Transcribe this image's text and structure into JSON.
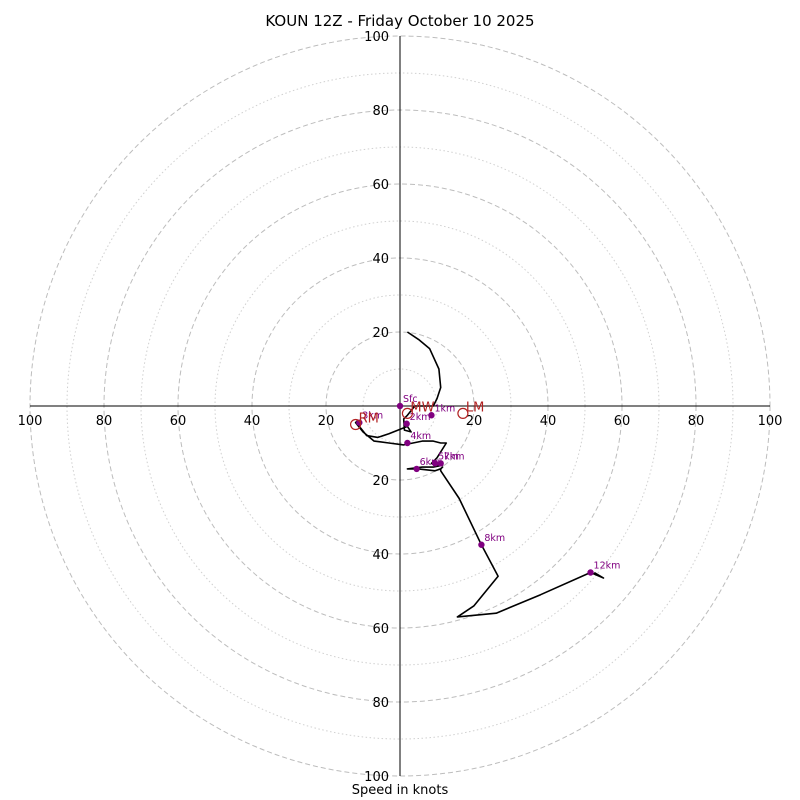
{
  "chart_data": {
    "type": "hodograph",
    "title": "KOUN 12Z - Friday October 10 2025",
    "xlabel": "Speed in knots",
    "axis_range": [
      -100,
      100
    ],
    "grid": {
      "major_rings": [
        20,
        40,
        60,
        80,
        100
      ],
      "minor_rings": [
        10,
        30,
        50,
        70,
        90
      ],
      "major_style": "dashed",
      "minor_style": "dotted"
    },
    "x_tick_labels": [
      "100",
      "80",
      "60",
      "40",
      "20",
      "20",
      "40",
      "60",
      "80",
      "100"
    ],
    "y_tick_labels": [
      "100",
      "80",
      "60",
      "40",
      "20",
      "20",
      "40",
      "60",
      "80",
      "100"
    ],
    "trace": [
      [
        2,
        20
      ],
      [
        5,
        18
      ],
      [
        8,
        15.5
      ],
      [
        10.5,
        10
      ],
      [
        11,
        5
      ],
      [
        10,
        2
      ],
      [
        9,
        0
      ],
      [
        4,
        0
      ],
      [
        2,
        -2.5
      ],
      [
        1,
        -3.5
      ],
      [
        1.2,
        -6.5
      ],
      [
        3,
        -7
      ],
      [
        2,
        -5.5
      ],
      [
        -3,
        -7.5
      ],
      [
        -6,
        -8.5
      ],
      [
        -9,
        -8
      ],
      [
        -11,
        -5.5
      ],
      [
        -11.5,
        -4
      ],
      [
        -12,
        -4.5
      ],
      [
        -10,
        -7
      ],
      [
        -7,
        -9.5
      ],
      [
        -3,
        -10
      ],
      [
        1,
        -10.5
      ],
      [
        6,
        -9.5
      ],
      [
        9,
        -9.5
      ],
      [
        11,
        -10
      ],
      [
        12.5,
        -10
      ],
      [
        10,
        -14
      ],
      [
        8.5,
        -15.5
      ],
      [
        11.5,
        -16
      ],
      [
        9,
        -16.5
      ],
      [
        6,
        -16.5
      ],
      [
        2,
        -17
      ],
      [
        5,
        -17
      ],
      [
        9.5,
        -17.5
      ],
      [
        11,
        -17
      ],
      [
        11.5,
        -16.5
      ],
      [
        11,
        -17
      ],
      [
        11,
        -17.5
      ],
      [
        16,
        -25
      ],
      [
        22,
        -37.5
      ],
      [
        26.5,
        -46
      ],
      [
        20,
        -54
      ],
      [
        15.5,
        -57
      ],
      [
        26,
        -56
      ],
      [
        38,
        -51
      ],
      [
        51.5,
        -45
      ],
      [
        55,
        -46.5
      ],
      [
        52.5,
        -45
      ]
    ],
    "height_markers": [
      {
        "label": "Sfc",
        "u": 0,
        "v": 0
      },
      {
        "label": "1km",
        "u": 8.5,
        "v": -2.5
      },
      {
        "label": "2km",
        "u": 1.8,
        "v": -4.8
      },
      {
        "label": "3km",
        "u": -11,
        "v": -4.5
      },
      {
        "label": "4km",
        "u": 2,
        "v": -10
      },
      {
        "label": "5km",
        "u": 9.5,
        "v": -15.5
      },
      {
        "label": "6km",
        "u": 4.5,
        "v": -17
      },
      {
        "label": "7km",
        "u": 11,
        "v": -15.5
      },
      {
        "label": "8km",
        "u": 22,
        "v": -37.5
      },
      {
        "label": "12km",
        "u": 51.5,
        "v": -45
      }
    ],
    "storm_motion": [
      {
        "label": "RM",
        "u": -12,
        "v": -5
      },
      {
        "label": "LM",
        "u": 17,
        "v": -2
      },
      {
        "label": "MW",
        "u": 2,
        "v": -2
      }
    ],
    "colors": {
      "trace": "#000000",
      "markers": "#800080",
      "motion": "#b22222",
      "grid": "#bdbdbd"
    }
  }
}
